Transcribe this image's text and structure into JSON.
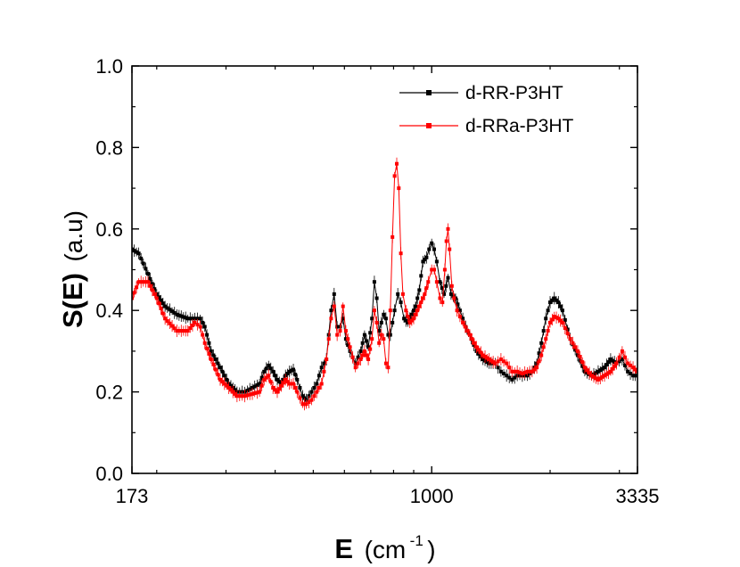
{
  "chart_data": {
    "type": "line",
    "title": "",
    "xlabel": {
      "symbol": "E",
      "unit_prefix": "(cm",
      "unit_exponent": "-1",
      "unit_suffix": ")"
    },
    "ylabel": {
      "symbol": "S(E)",
      "unit": "(a.u)"
    },
    "x_scale": "log",
    "x_range": [
      173,
      3335
    ],
    "x_ticks": [
      {
        "value": 173,
        "label": "173"
      },
      {
        "value": 1000,
        "label": "1000"
      },
      {
        "value": 3335,
        "label": "3335"
      }
    ],
    "ylim": [
      0.0,
      1.0
    ],
    "y_ticks": [
      {
        "value": 0.0,
        "label": "0.0"
      },
      {
        "value": 0.2,
        "label": "0.2"
      },
      {
        "value": 0.4,
        "label": "0.4"
      },
      {
        "value": 0.6,
        "label": "0.6"
      },
      {
        "value": 0.8,
        "label": "0.8"
      },
      {
        "value": 1.0,
        "label": "1.0"
      }
    ],
    "legend": {
      "position": "top-right"
    },
    "series": [
      {
        "name": "d-RR-P3HT",
        "color": "#000000",
        "points": [
          [
            173,
            0.55
          ],
          [
            180,
            0.54
          ],
          [
            190,
            0.49
          ],
          [
            200,
            0.44
          ],
          [
            210,
            0.41
          ],
          [
            225,
            0.39
          ],
          [
            240,
            0.38
          ],
          [
            250,
            0.38
          ],
          [
            258,
            0.38
          ],
          [
            265,
            0.36
          ],
          [
            275,
            0.3
          ],
          [
            290,
            0.26
          ],
          [
            305,
            0.22
          ],
          [
            320,
            0.2
          ],
          [
            335,
            0.2
          ],
          [
            350,
            0.21
          ],
          [
            365,
            0.22
          ],
          [
            375,
            0.25
          ],
          [
            385,
            0.265
          ],
          [
            395,
            0.25
          ],
          [
            405,
            0.23
          ],
          [
            415,
            0.22
          ],
          [
            425,
            0.24
          ],
          [
            435,
            0.25
          ],
          [
            445,
            0.255
          ],
          [
            455,
            0.23
          ],
          [
            470,
            0.19
          ],
          [
            480,
            0.18
          ],
          [
            495,
            0.2
          ],
          [
            510,
            0.22
          ],
          [
            525,
            0.26
          ],
          [
            540,
            0.28
          ],
          [
            555,
            0.4
          ],
          [
            565,
            0.44
          ],
          [
            575,
            0.36
          ],
          [
            585,
            0.36
          ],
          [
            595,
            0.38
          ],
          [
            605,
            0.33
          ],
          [
            620,
            0.3
          ],
          [
            640,
            0.27
          ],
          [
            660,
            0.3
          ],
          [
            675,
            0.34
          ],
          [
            690,
            0.31
          ],
          [
            705,
            0.38
          ],
          [
            715,
            0.47
          ],
          [
            725,
            0.43
          ],
          [
            735,
            0.35
          ],
          [
            745,
            0.37
          ],
          [
            755,
            0.39
          ],
          [
            765,
            0.38
          ],
          [
            775,
            0.34
          ],
          [
            785,
            0.34
          ],
          [
            795,
            0.37
          ],
          [
            805,
            0.4
          ],
          [
            820,
            0.44
          ],
          [
            835,
            0.42
          ],
          [
            850,
            0.38
          ],
          [
            870,
            0.37
          ],
          [
            890,
            0.39
          ],
          [
            910,
            0.41
          ],
          [
            930,
            0.45
          ],
          [
            950,
            0.52
          ],
          [
            970,
            0.53
          ],
          [
            985,
            0.55
          ],
          [
            1000,
            0.565
          ],
          [
            1015,
            0.55
          ],
          [
            1030,
            0.52
          ],
          [
            1050,
            0.47
          ],
          [
            1075,
            0.44
          ],
          [
            1100,
            0.48
          ],
          [
            1120,
            0.44
          ],
          [
            1150,
            0.43
          ],
          [
            1180,
            0.4
          ],
          [
            1220,
            0.36
          ],
          [
            1260,
            0.33
          ],
          [
            1300,
            0.3
          ],
          [
            1350,
            0.28
          ],
          [
            1400,
            0.27
          ],
          [
            1450,
            0.27
          ],
          [
            1500,
            0.25
          ],
          [
            1550,
            0.24
          ],
          [
            1600,
            0.23
          ],
          [
            1650,
            0.24
          ],
          [
            1700,
            0.24
          ],
          [
            1750,
            0.24
          ],
          [
            1800,
            0.25
          ],
          [
            1850,
            0.27
          ],
          [
            1900,
            0.32
          ],
          [
            1950,
            0.38
          ],
          [
            2000,
            0.42
          ],
          [
            2050,
            0.43
          ],
          [
            2100,
            0.42
          ],
          [
            2150,
            0.4
          ],
          [
            2250,
            0.33
          ],
          [
            2350,
            0.29
          ],
          [
            2450,
            0.25
          ],
          [
            2550,
            0.24
          ],
          [
            2650,
            0.25
          ],
          [
            2750,
            0.26
          ],
          [
            2850,
            0.28
          ],
          [
            2950,
            0.27
          ],
          [
            3050,
            0.28
          ],
          [
            3150,
            0.25
          ],
          [
            3250,
            0.24
          ],
          [
            3335,
            0.24
          ]
        ]
      },
      {
        "name": "d-RRa-P3HT",
        "color": "#ff0000",
        "points": [
          [
            173,
            0.43
          ],
          [
            180,
            0.47
          ],
          [
            190,
            0.47
          ],
          [
            200,
            0.43
          ],
          [
            210,
            0.38
          ],
          [
            225,
            0.35
          ],
          [
            240,
            0.35
          ],
          [
            250,
            0.37
          ],
          [
            258,
            0.36
          ],
          [
            265,
            0.32
          ],
          [
            275,
            0.28
          ],
          [
            290,
            0.23
          ],
          [
            305,
            0.21
          ],
          [
            320,
            0.19
          ],
          [
            335,
            0.19
          ],
          [
            350,
            0.195
          ],
          [
            365,
            0.2
          ],
          [
            375,
            0.23
          ],
          [
            385,
            0.24
          ],
          [
            395,
            0.21
          ],
          [
            405,
            0.2
          ],
          [
            415,
            0.215
          ],
          [
            425,
            0.23
          ],
          [
            435,
            0.22
          ],
          [
            445,
            0.22
          ],
          [
            455,
            0.2
          ],
          [
            470,
            0.17
          ],
          [
            480,
            0.17
          ],
          [
            495,
            0.18
          ],
          [
            510,
            0.2
          ],
          [
            525,
            0.22
          ],
          [
            540,
            0.28
          ],
          [
            555,
            0.38
          ],
          [
            565,
            0.41
          ],
          [
            575,
            0.34
          ],
          [
            585,
            0.35
          ],
          [
            595,
            0.41
          ],
          [
            605,
            0.35
          ],
          [
            620,
            0.31
          ],
          [
            640,
            0.26
          ],
          [
            660,
            0.28
          ],
          [
            675,
            0.3
          ],
          [
            690,
            0.28
          ],
          [
            705,
            0.33
          ],
          [
            715,
            0.4
          ],
          [
            725,
            0.37
          ],
          [
            735,
            0.32
          ],
          [
            745,
            0.34
          ],
          [
            755,
            0.33
          ],
          [
            765,
            0.27
          ],
          [
            775,
            0.26
          ],
          [
            785,
            0.4
          ],
          [
            795,
            0.58
          ],
          [
            805,
            0.73
          ],
          [
            815,
            0.76
          ],
          [
            825,
            0.7
          ],
          [
            835,
            0.54
          ],
          [
            845,
            0.44
          ],
          [
            860,
            0.4
          ],
          [
            880,
            0.37
          ],
          [
            900,
            0.38
          ],
          [
            920,
            0.4
          ],
          [
            940,
            0.42
          ],
          [
            960,
            0.44
          ],
          [
            980,
            0.47
          ],
          [
            1000,
            0.5
          ],
          [
            1015,
            0.5
          ],
          [
            1030,
            0.47
          ],
          [
            1050,
            0.43
          ],
          [
            1065,
            0.42
          ],
          [
            1080,
            0.5
          ],
          [
            1090,
            0.57
          ],
          [
            1100,
            0.6
          ],
          [
            1110,
            0.55
          ],
          [
            1125,
            0.46
          ],
          [
            1140,
            0.43
          ],
          [
            1160,
            0.4
          ],
          [
            1200,
            0.37
          ],
          [
            1250,
            0.34
          ],
          [
            1300,
            0.31
          ],
          [
            1350,
            0.29
          ],
          [
            1400,
            0.28
          ],
          [
            1450,
            0.27
          ],
          [
            1500,
            0.28
          ],
          [
            1550,
            0.27
          ],
          [
            1600,
            0.25
          ],
          [
            1650,
            0.25
          ],
          [
            1700,
            0.245
          ],
          [
            1750,
            0.25
          ],
          [
            1800,
            0.25
          ],
          [
            1850,
            0.26
          ],
          [
            1900,
            0.29
          ],
          [
            1950,
            0.33
          ],
          [
            2000,
            0.37
          ],
          [
            2050,
            0.385
          ],
          [
            2100,
            0.38
          ],
          [
            2150,
            0.37
          ],
          [
            2250,
            0.33
          ],
          [
            2350,
            0.3
          ],
          [
            2450,
            0.26
          ],
          [
            2550,
            0.24
          ],
          [
            2650,
            0.23
          ],
          [
            2750,
            0.24
          ],
          [
            2850,
            0.25
          ],
          [
            2950,
            0.27
          ],
          [
            3050,
            0.3
          ],
          [
            3150,
            0.27
          ],
          [
            3250,
            0.26
          ],
          [
            3335,
            0.25
          ]
        ]
      }
    ]
  }
}
